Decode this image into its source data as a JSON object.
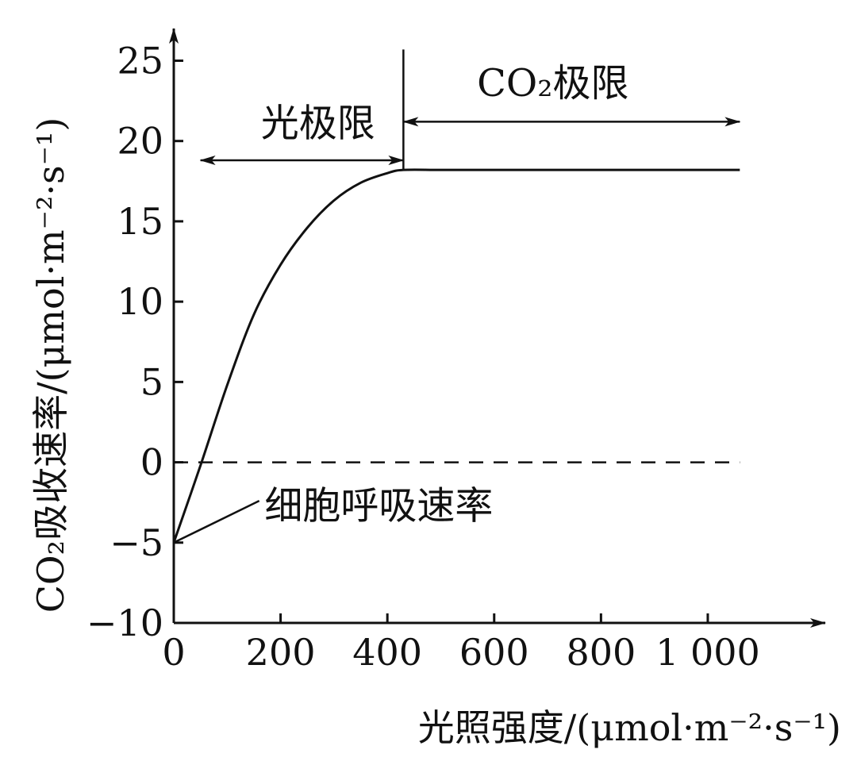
{
  "chart_data": {
    "type": "line",
    "title": "",
    "xlabel": "光照强度/(μmol·m⁻²·s⁻¹)",
    "ylabel": "CO₂吸收速率/(μmol·m⁻²·s⁻¹)",
    "xlim": [
      0,
      1220
    ],
    "ylim": [
      -10,
      27
    ],
    "x_ticks": [
      0,
      200,
      400,
      600,
      800,
      1000
    ],
    "x_tick_labels": [
      "0",
      "200",
      "400",
      "600",
      "800",
      "1 000"
    ],
    "y_ticks": [
      -10,
      -5,
      0,
      5,
      10,
      15,
      20,
      25
    ],
    "y_tick_labels": [
      "−10",
      "−5",
      "0",
      "5",
      "10",
      "15",
      "20",
      "25"
    ],
    "grid": false,
    "series": [
      {
        "x": [
          0,
          50,
          100,
          150,
          200,
          250,
          300,
          350,
          400,
          430,
          500,
          600,
          700,
          800,
          900,
          1000,
          1060
        ],
        "y": [
          -5,
          -0.2,
          4.8,
          9.2,
          12.3,
          14.6,
          16.3,
          17.4,
          18.0,
          18.2,
          18.2,
          18.2,
          18.2,
          18.2,
          18.2,
          18.2,
          18.2
        ]
      }
    ],
    "reference_lines": [
      {
        "orientation": "horizontal",
        "y": 0,
        "x_range": [
          0,
          1060
        ],
        "style": "dashed"
      },
      {
        "orientation": "vertical",
        "x": 430,
        "y_range": [
          18.2,
          25.7
        ],
        "style": "solid"
      }
    ],
    "annotations": [
      {
        "text": "光极限",
        "arrow_x_range": [
          50,
          430
        ],
        "arrow_y": 18.8,
        "text_x": 270,
        "text_y": 20.3
      },
      {
        "text": "CO₂极限",
        "arrow_x_range": [
          430,
          1060
        ],
        "arrow_y": 21.2,
        "text_x": 710,
        "text_y": 22.8
      },
      {
        "text": "细胞呼吸速率",
        "pointer_from": [
          160,
          -2.4
        ],
        "pointer_to": [
          0,
          -5
        ],
        "text_x": 170,
        "text_y": -3.5
      }
    ]
  }
}
